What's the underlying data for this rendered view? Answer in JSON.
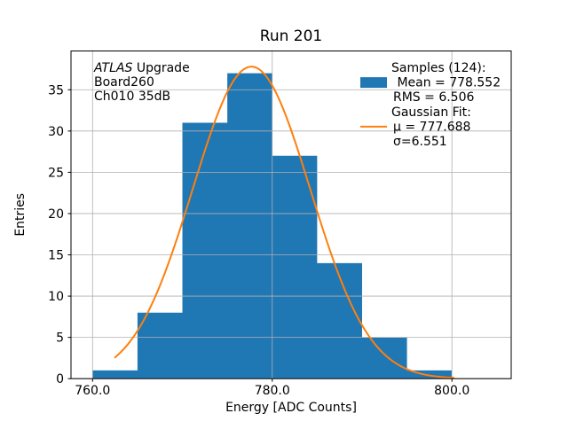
{
  "title": "Run 201",
  "axes": {
    "xlabel": "Energy [ADC Counts]",
    "ylabel": "Entries"
  },
  "annotation": {
    "line1_italic": "ATLAS",
    "line1_rest": " Upgrade",
    "line2": "Board260",
    "line3": "Ch010 35dB"
  },
  "legend": {
    "rows": [
      {
        "handle": "none",
        "label": "Samples (124):",
        "header": true
      },
      {
        "handle": "patch",
        "label": " Mean = 778.552"
      },
      {
        "handle": "none",
        "label": "RMS = 6.506"
      },
      {
        "handle": "none",
        "label": "Gaussian Fit:",
        "header": true
      },
      {
        "handle": "line",
        "label": "μ = 777.688"
      },
      {
        "handle": "none",
        "label": "σ=6.551"
      }
    ]
  },
  "chart_data": {
    "type": "bar",
    "subtype": "histogram_with_gaussian_fit",
    "title": "Run 201",
    "xlabel": "Energy [ADC Counts]",
    "ylabel": "Entries",
    "bin_edges": [
      760,
      765,
      770,
      775,
      780,
      785,
      790,
      795,
      800
    ],
    "counts": [
      1,
      8,
      31,
      37,
      27,
      14,
      5,
      1
    ],
    "total_samples": 124,
    "stats": {
      "mean": 778.552,
      "rms": 6.506
    },
    "gaussian_fit": {
      "mu": 777.688,
      "sigma": 6.551,
      "amplitude": 37.8,
      "x_range": [
        762.5,
        800.2
      ]
    },
    "xlim": [
      757.6,
      806.6
    ],
    "ylim": [
      0,
      39.7
    ],
    "xticks": [
      {
        "v": 760,
        "label": "760.0"
      },
      {
        "v": 780,
        "label": "780.0"
      },
      {
        "v": 800,
        "label": "800.0"
      }
    ],
    "yticks": [
      {
        "v": 0,
        "label": "0"
      },
      {
        "v": 5,
        "label": "5"
      },
      {
        "v": 10,
        "label": "10"
      },
      {
        "v": 15,
        "label": "15"
      },
      {
        "v": 20,
        "label": "20"
      },
      {
        "v": 25,
        "label": "25"
      },
      {
        "v": 30,
        "label": "30"
      },
      {
        "v": 35,
        "label": "35"
      }
    ],
    "grid": true,
    "legend_position": "upper right",
    "colors": {
      "hist": "#1f77b4",
      "fit": "#ff7f0e",
      "grid": "#b0b0b0",
      "text": "#000000"
    }
  }
}
